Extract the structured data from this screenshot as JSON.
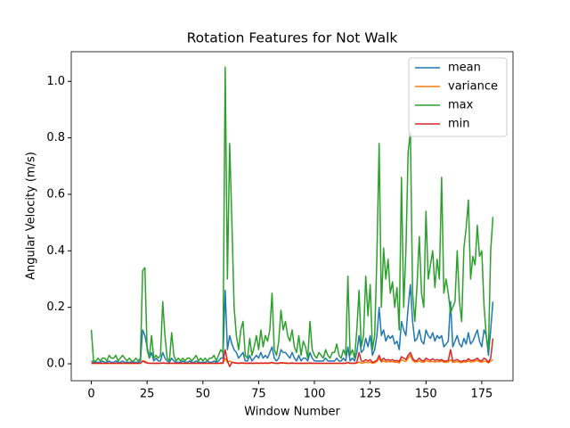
{
  "chart_data": {
    "type": "line",
    "title": "Rotation Features for Not Walk",
    "xlabel": "Window Number",
    "ylabel": "Angular Velocity (m/s)",
    "x": [
      0,
      1,
      2,
      3,
      4,
      5,
      6,
      7,
      8,
      9,
      10,
      11,
      12,
      13,
      14,
      15,
      16,
      17,
      18,
      19,
      20,
      21,
      22,
      23,
      24,
      25,
      26,
      27,
      28,
      29,
      30,
      31,
      32,
      33,
      34,
      35,
      36,
      37,
      38,
      39,
      40,
      41,
      42,
      43,
      44,
      45,
      46,
      47,
      48,
      49,
      50,
      51,
      52,
      53,
      54,
      55,
      56,
      57,
      58,
      59,
      60,
      61,
      62,
      63,
      64,
      65,
      66,
      67,
      68,
      69,
      70,
      71,
      72,
      73,
      74,
      75,
      76,
      77,
      78,
      79,
      80,
      81,
      82,
      83,
      84,
      85,
      86,
      87,
      88,
      89,
      90,
      91,
      92,
      93,
      94,
      95,
      96,
      97,
      98,
      99,
      100,
      101,
      102,
      103,
      104,
      105,
      106,
      107,
      108,
      109,
      110,
      111,
      112,
      113,
      114,
      115,
      116,
      117,
      118,
      119,
      120,
      121,
      122,
      123,
      124,
      125,
      126,
      127,
      128,
      129,
      130,
      131,
      132,
      133,
      134,
      135,
      136,
      137,
      138,
      139,
      140,
      141,
      142,
      143,
      144,
      145,
      146,
      147,
      148,
      149,
      150,
      151,
      152,
      153,
      154,
      155,
      156,
      157,
      158,
      159,
      160,
      161,
      162,
      163,
      164,
      165,
      166,
      167,
      168,
      169,
      170,
      171,
      172,
      173,
      174,
      175,
      176,
      177,
      178,
      179,
      180
    ],
    "series": [
      {
        "name": "mean",
        "color": "#1f77b4",
        "values": [
          0.01,
          0.005,
          0.005,
          0.005,
          0.005,
          0.01,
          0.005,
          0.005,
          0.01,
          0.005,
          0.005,
          0.01,
          0.005,
          0.005,
          0.01,
          0.005,
          0.005,
          0.005,
          0.005,
          0.005,
          0.005,
          0.005,
          0.01,
          0.12,
          0.1,
          0.06,
          0.02,
          0.04,
          0.01,
          0.02,
          0.01,
          0.01,
          0.04,
          0.02,
          0.01,
          0.005,
          0.02,
          0.01,
          0.005,
          0.005,
          0.005,
          0.01,
          0.005,
          0.005,
          0.01,
          0.005,
          0.005,
          0.01,
          0.005,
          0.005,
          0.005,
          0.005,
          0.01,
          0.005,
          0.005,
          0.01,
          0.005,
          0.01,
          0.02,
          0.02,
          0.26,
          0.05,
          0.1,
          0.07,
          0.05,
          0.04,
          0.02,
          0.03,
          0.04,
          0.01,
          0.01,
          0.03,
          0.01,
          0.02,
          0.03,
          0.02,
          0.04,
          0.02,
          0.03,
          0.02,
          0.04,
          0.06,
          0.02,
          0.01,
          0.02,
          0.05,
          0.04,
          0.04,
          0.03,
          0.02,
          0.04,
          0.02,
          0.01,
          0.03,
          0.01,
          0.02,
          0.02,
          0.01,
          0.04,
          0.02,
          0.01,
          0.01,
          0.01,
          0.01,
          0.01,
          0.02,
          0.01,
          0.01,
          0.01,
          0.01,
          0.02,
          0.01,
          0.01,
          0.02,
          0.01,
          0.06,
          0.01,
          0.02,
          0.01,
          0.04,
          0.1,
          0.04,
          0.05,
          0.09,
          0.06,
          0.1,
          0.03,
          0.05,
          0.1,
          0.2,
          0.1,
          0.12,
          0.08,
          0.1,
          0.09,
          0.1,
          0.07,
          0.08,
          0.05,
          0.15,
          0.12,
          0.1,
          0.2,
          0.28,
          0.15,
          0.08,
          0.09,
          0.12,
          0.08,
          0.07,
          0.12,
          0.1,
          0.09,
          0.11,
          0.08,
          0.1,
          0.09,
          0.1,
          0.06,
          0.07,
          0.08,
          0.22,
          0.06,
          0.08,
          0.1,
          0.07,
          0.06,
          0.09,
          0.07,
          0.11,
          0.07,
          0.08,
          0.1,
          0.12,
          0.08,
          0.06,
          0.12,
          0.1,
          0.03,
          0.12,
          0.22
        ]
      },
      {
        "name": "variance",
        "color": "#ff7f0e",
        "values": [
          0.001,
          0.001,
          0.001,
          0.001,
          0.001,
          0.001,
          0.001,
          0.001,
          0.001,
          0.001,
          0.001,
          0.001,
          0.001,
          0.001,
          0.001,
          0.001,
          0.001,
          0.001,
          0.001,
          0.001,
          0.001,
          0.001,
          0.001,
          0.01,
          0.01,
          0.003,
          0.001,
          0.002,
          0.001,
          0.001,
          0.001,
          0.001,
          0.004,
          0.002,
          0.001,
          0.001,
          0.002,
          0.001,
          0.001,
          0.001,
          0.001,
          0.001,
          0.001,
          0.001,
          0.001,
          0.001,
          0.001,
          0.001,
          0.001,
          0.001,
          0.001,
          0.001,
          0.001,
          0.001,
          0.001,
          0.001,
          0.001,
          0.001,
          0.001,
          0.001,
          0.02,
          0.005,
          0.01,
          0.006,
          0.003,
          0.002,
          0.001,
          0.002,
          0.002,
          0.001,
          0.001,
          0.001,
          0.001,
          0.001,
          0.002,
          0.001,
          0.002,
          0.001,
          0.002,
          0.001,
          0.002,
          0.004,
          0.001,
          0.001,
          0.001,
          0.003,
          0.002,
          0.002,
          0.001,
          0.001,
          0.002,
          0.001,
          0.001,
          0.001,
          0.001,
          0.001,
          0.001,
          0.001,
          0.002,
          0.001,
          0.001,
          0.001,
          0.001,
          0.001,
          0.001,
          0.001,
          0.001,
          0.001,
          0.001,
          0.001,
          0.001,
          0.001,
          0.001,
          0.001,
          0.001,
          0.004,
          0.001,
          0.001,
          0.001,
          0.002,
          0.006,
          0.002,
          0.003,
          0.006,
          0.004,
          0.006,
          0.002,
          0.003,
          0.008,
          0.02,
          0.006,
          0.01,
          0.006,
          0.008,
          0.007,
          0.008,
          0.005,
          0.006,
          0.003,
          0.015,
          0.01,
          0.008,
          0.02,
          0.03,
          0.012,
          0.006,
          0.007,
          0.01,
          0.006,
          0.005,
          0.012,
          0.008,
          0.007,
          0.009,
          0.006,
          0.008,
          0.007,
          0.01,
          0.005,
          0.006,
          0.006,
          0.015,
          0.005,
          0.006,
          0.008,
          0.005,
          0.004,
          0.007,
          0.006,
          0.01,
          0.006,
          0.007,
          0.009,
          0.012,
          0.007,
          0.005,
          0.01,
          0.008,
          0.003,
          0.01,
          0.015
        ]
      },
      {
        "name": "max",
        "color": "#2ca02c",
        "values": [
          0.12,
          0.01,
          0.01,
          0.02,
          0.01,
          0.02,
          0.02,
          0.01,
          0.03,
          0.02,
          0.02,
          0.03,
          0.01,
          0.02,
          0.03,
          0.02,
          0.01,
          0.02,
          0.01,
          0.01,
          0.02,
          0.01,
          0.02,
          0.33,
          0.34,
          0.05,
          0.02,
          0.1,
          0.02,
          0.03,
          0.02,
          0.03,
          0.22,
          0.1,
          0.02,
          0.01,
          0.11,
          0.03,
          0.01,
          0.02,
          0.01,
          0.02,
          0.01,
          0.02,
          0.02,
          0.01,
          0.02,
          0.03,
          0.01,
          0.02,
          0.01,
          0.02,
          0.01,
          0.02,
          0.02,
          0.03,
          0.01,
          0.03,
          0.05,
          0.04,
          1.05,
          0.3,
          0.78,
          0.5,
          0.2,
          0.1,
          0.05,
          0.12,
          0.15,
          0.03,
          0.02,
          0.09,
          0.03,
          0.06,
          0.1,
          0.05,
          0.12,
          0.06,
          0.1,
          0.08,
          0.12,
          0.25,
          0.05,
          0.03,
          0.08,
          0.19,
          0.12,
          0.15,
          0.1,
          0.08,
          0.12,
          0.06,
          0.04,
          0.1,
          0.03,
          0.08,
          0.06,
          0.02,
          0.15,
          0.05,
          0.03,
          0.02,
          0.04,
          0.03,
          0.02,
          0.05,
          0.03,
          0.02,
          0.04,
          0.04,
          0.07,
          0.03,
          0.02,
          0.05,
          0.03,
          0.31,
          0.03,
          0.05,
          0.02,
          0.12,
          0.26,
          0.06,
          0.1,
          0.31,
          0.17,
          0.28,
          0.05,
          0.1,
          0.38,
          0.78,
          0.2,
          0.41,
          0.3,
          0.37,
          0.25,
          0.29,
          0.2,
          0.27,
          0.12,
          0.66,
          0.2,
          0.4,
          0.75,
          0.82,
          0.25,
          0.15,
          0.28,
          0.45,
          0.25,
          0.2,
          0.54,
          0.3,
          0.35,
          0.4,
          0.27,
          0.37,
          0.3,
          0.66,
          0.25,
          0.3,
          0.25,
          0.18,
          0.2,
          0.22,
          0.4,
          0.22,
          0.15,
          0.41,
          0.48,
          0.58,
          0.3,
          0.38,
          0.35,
          0.49,
          0.38,
          0.4,
          0.21,
          0.1,
          0.05,
          0.4,
          0.52
        ]
      },
      {
        "name": "min",
        "color": "#d62728",
        "values": [
          0.002,
          0.002,
          0.002,
          0.002,
          0.002,
          0.002,
          0.002,
          0.002,
          0.002,
          0.002,
          0.002,
          0.002,
          0.002,
          0.002,
          0.002,
          0.002,
          0.002,
          0.002,
          0.002,
          0.002,
          0.002,
          0.002,
          0.002,
          0.01,
          0.005,
          0.003,
          0.002,
          0.002,
          0.002,
          0.002,
          0.002,
          0.002,
          0.003,
          0.002,
          0.002,
          0.002,
          0.002,
          0.002,
          0.002,
          0.002,
          0.002,
          0.002,
          0.002,
          0.002,
          0.002,
          0.002,
          0.002,
          0.002,
          0.002,
          0.002,
          0.002,
          0.002,
          0.002,
          0.002,
          0.002,
          0.002,
          0.002,
          0.002,
          0.003,
          0.003,
          0.05,
          0.01,
          -0.01,
          0.005,
          0.004,
          0.003,
          0.002,
          0.003,
          0.003,
          0.002,
          0.002,
          0.003,
          0.002,
          0.002,
          0.003,
          0.002,
          0.003,
          0.002,
          0.003,
          0.002,
          0.003,
          0.005,
          0.002,
          0.002,
          0.002,
          0.004,
          0.003,
          0.003,
          0.002,
          0.002,
          0.003,
          0.002,
          0.002,
          0.002,
          0.002,
          0.002,
          0.002,
          0.002,
          0.003,
          0.002,
          0.002,
          0.002,
          0.002,
          0.002,
          0.002,
          0.002,
          0.002,
          0.002,
          0.002,
          0.002,
          0.002,
          0.002,
          0.002,
          0.002,
          0.002,
          0.005,
          0.002,
          0.002,
          0.002,
          0.005,
          0.04,
          0.01,
          0.008,
          0.015,
          0.01,
          0.015,
          0.005,
          0.008,
          0.012,
          0.03,
          0.01,
          0.02,
          0.012,
          0.015,
          0.012,
          0.015,
          0.01,
          0.012,
          0.008,
          0.025,
          0.02,
          0.015,
          0.03,
          0.04,
          0.02,
          0.01,
          0.012,
          0.02,
          0.012,
          0.01,
          0.02,
          0.015,
          0.012,
          0.018,
          0.012,
          0.015,
          0.012,
          0.015,
          0.01,
          0.01,
          0.012,
          0.05,
          0.01,
          0.012,
          0.015,
          0.01,
          0.008,
          0.012,
          0.01,
          0.018,
          0.012,
          0.012,
          0.015,
          0.02,
          0.012,
          0.01,
          0.02,
          0.015,
          0.005,
          0.02,
          0.09
        ]
      }
    ],
    "xlim": [
      -9,
      189
    ],
    "xticks": [
      0,
      25,
      50,
      75,
      100,
      125,
      150,
      175
    ],
    "ylim": [
      -0.06,
      1.105
    ],
    "yticks": [
      {
        "value": 0,
        "label": "0.0"
      },
      0.2,
      0.4,
      0.6,
      0.8,
      {
        "value": 1,
        "label": "1.0"
      }
    ],
    "legend": "upper right"
  }
}
